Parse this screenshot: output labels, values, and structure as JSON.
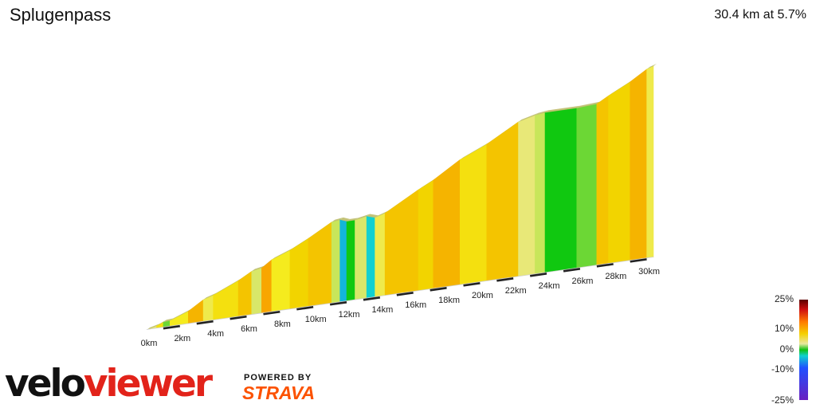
{
  "segment": {
    "name": "Splugenpass",
    "summary": "30.4 km at 5.7%"
  },
  "legend": {
    "labels": [
      "25%",
      "10%",
      "0%",
      "-10%",
      "-25%"
    ]
  },
  "branding": {
    "logo_part1": "velo",
    "logo_part2": "viewer",
    "powered_by": "POWERED BY",
    "strava": "STRAVA"
  },
  "chart_data": {
    "type": "area",
    "title": "Splugenpass",
    "distance_km": 30.4,
    "average_gradient_pct": 5.7,
    "x_tick_labels": [
      "0km",
      "2km",
      "4km",
      "6km",
      "8km",
      "10km",
      "12km",
      "14km",
      "16km",
      "18km",
      "20km",
      "22km",
      "24km",
      "26km",
      "28km",
      "30km"
    ],
    "gradient_scale_pct": [
      25,
      10,
      0,
      -10,
      -25
    ],
    "segments": [
      {
        "from_km": 0.0,
        "to_km": 0.6,
        "gradient_pct": 4
      },
      {
        "from_km": 0.6,
        "to_km": 1.0,
        "gradient_pct": 7
      },
      {
        "from_km": 1.0,
        "to_km": 1.4,
        "gradient_pct": 1
      },
      {
        "from_km": 1.4,
        "to_km": 2.5,
        "gradient_pct": 6
      },
      {
        "from_km": 2.5,
        "to_km": 3.4,
        "gradient_pct": 10
      },
      {
        "from_km": 3.4,
        "to_km": 4.0,
        "gradient_pct": 5
      },
      {
        "from_km": 4.0,
        "to_km": 5.5,
        "gradient_pct": 7
      },
      {
        "from_km": 5.5,
        "to_km": 6.3,
        "gradient_pct": 9
      },
      {
        "from_km": 6.3,
        "to_km": 6.9,
        "gradient_pct": 3
      },
      {
        "from_km": 6.9,
        "to_km": 7.5,
        "gradient_pct": 11
      },
      {
        "from_km": 7.5,
        "to_km": 8.6,
        "gradient_pct": 6
      },
      {
        "from_km": 8.6,
        "to_km": 9.7,
        "gradient_pct": 8
      },
      {
        "from_km": 9.7,
        "to_km": 11.1,
        "gradient_pct": 9
      },
      {
        "from_km": 11.1,
        "to_km": 11.6,
        "gradient_pct": 2
      },
      {
        "from_km": 11.6,
        "to_km": 12.0,
        "gradient_pct": -6
      },
      {
        "from_km": 12.0,
        "to_km": 12.5,
        "gradient_pct": 0
      },
      {
        "from_km": 12.5,
        "to_km": 13.2,
        "gradient_pct": 3
      },
      {
        "from_km": 13.2,
        "to_km": 13.7,
        "gradient_pct": -5
      },
      {
        "from_km": 13.7,
        "to_km": 14.3,
        "gradient_pct": 5
      },
      {
        "from_km": 14.3,
        "to_km": 16.3,
        "gradient_pct": 9
      },
      {
        "from_km": 16.3,
        "to_km": 17.2,
        "gradient_pct": 8
      },
      {
        "from_km": 17.2,
        "to_km": 18.8,
        "gradient_pct": 10
      },
      {
        "from_km": 18.8,
        "to_km": 20.4,
        "gradient_pct": 7
      },
      {
        "from_km": 20.4,
        "to_km": 22.3,
        "gradient_pct": 9
      },
      {
        "from_km": 22.3,
        "to_km": 23.3,
        "gradient_pct": 4
      },
      {
        "from_km": 23.3,
        "to_km": 23.9,
        "gradient_pct": 2
      },
      {
        "from_km": 23.9,
        "to_km": 25.8,
        "gradient_pct": 0
      },
      {
        "from_km": 25.8,
        "to_km": 27.0,
        "gradient_pct": 1
      },
      {
        "from_km": 27.0,
        "to_km": 27.7,
        "gradient_pct": 9
      },
      {
        "from_km": 27.7,
        "to_km": 29.0,
        "gradient_pct": 8
      },
      {
        "from_km": 29.0,
        "to_km": 30.0,
        "gradient_pct": 10
      },
      {
        "from_km": 30.0,
        "to_km": 30.4,
        "gradient_pct": 5
      }
    ]
  }
}
